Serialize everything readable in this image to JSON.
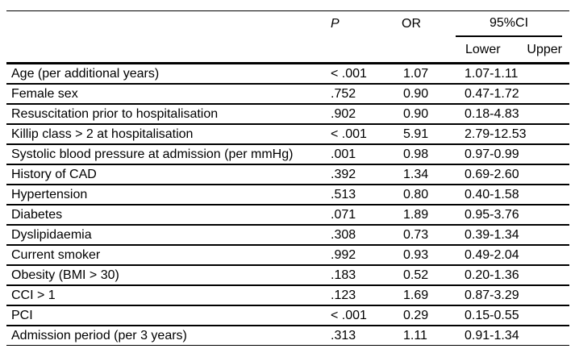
{
  "table": {
    "columns": {
      "p_label": "P",
      "or_label": "OR",
      "ci_label": "95%CI",
      "ci_lower_label": "Lower",
      "ci_upper_label": "Upper"
    },
    "rows": [
      {
        "label": "Age (per additional years)",
        "p": "< .001",
        "or": "1.07",
        "ci": "1.07-1.11"
      },
      {
        "label": "Female sex",
        "p": ".752",
        "or": "0.90",
        "ci": "0.47-1.72"
      },
      {
        "label": "Resuscitation prior to hospitalisation",
        "p": ".902",
        "or": "0.90",
        "ci": "0.18-4.83"
      },
      {
        "label": "Killip class > 2 at hospitalisation",
        "p": "< .001",
        "or": "5.91",
        "ci": "2.79-12.53"
      },
      {
        "label": "Systolic blood pressure at admission (per mmHg)",
        "p": ".001",
        "or": "0.98",
        "ci": "0.97-0.99"
      },
      {
        "label": "History of CAD",
        "p": ".392",
        "or": "1.34",
        "ci": "0.69-2.60"
      },
      {
        "label": "Hypertension",
        "p": ".513",
        "or": "0.80",
        "ci": "0.40-1.58"
      },
      {
        "label": "Diabetes",
        "p": ".071",
        "or": "1.89",
        "ci": "0.95-3.76"
      },
      {
        "label": "Dyslipidaemia",
        "p": ".308",
        "or": "0.73",
        "ci": "0.39-1.34"
      },
      {
        "label": "Current smoker",
        "p": ".992",
        "or": "0.93",
        "ci": "0.49-2.04"
      },
      {
        "label": "Obesity (BMI > 30)",
        "p": ".183",
        "or": "0.52",
        "ci": "0.20-1.36"
      },
      {
        "label": "CCI > 1",
        "p": ".123",
        "or": "1.69",
        "ci": "0.87-3.29"
      },
      {
        "label": "PCI",
        "p": "< .001",
        "or": "0.29",
        "ci": "0.15-0.55"
      },
      {
        "label": "Admission period (per 3 years)",
        "p": ".313",
        "or": "1.11",
        "ci": "0.91-1.34"
      }
    ],
    "colors": {
      "text": "#000000",
      "background": "#ffffff",
      "rule": "#000000"
    }
  }
}
